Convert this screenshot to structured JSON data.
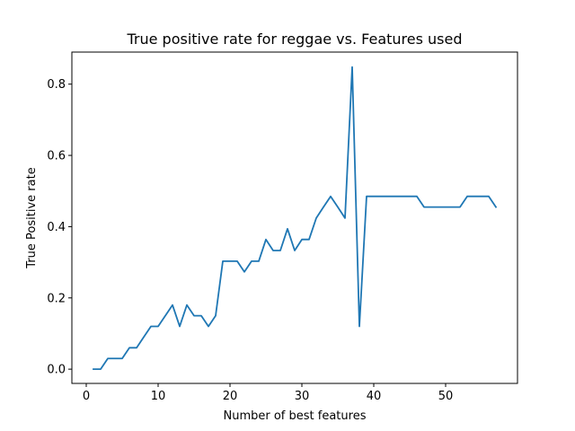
{
  "chart_data": {
    "type": "line",
    "title": "True positive rate for reggae vs. Features used",
    "xlabel": "Number of best features",
    "ylabel": "True Positive rate",
    "xlim": [
      -2,
      60
    ],
    "ylim": [
      -0.04,
      0.89
    ],
    "xticks": [
      0,
      10,
      20,
      30,
      40,
      50
    ],
    "xtick_labels": [
      "0",
      "10",
      "20",
      "30",
      "40",
      "50"
    ],
    "yticks": [
      0.0,
      0.2,
      0.4,
      0.6,
      0.8
    ],
    "ytick_labels": [
      "0.0",
      "0.2",
      "0.4",
      "0.6",
      "0.8"
    ],
    "grid": false,
    "series": [
      {
        "color": "#1f77b4",
        "x": [
          1,
          2,
          3,
          4,
          5,
          6,
          7,
          8,
          9,
          10,
          11,
          12,
          13,
          14,
          15,
          16,
          17,
          18,
          19,
          20,
          21,
          22,
          23,
          24,
          25,
          26,
          27,
          28,
          29,
          30,
          31,
          32,
          33,
          34,
          35,
          36,
          37,
          38,
          39,
          40,
          41,
          42,
          43,
          44,
          45,
          46,
          47,
          48,
          49,
          50,
          51,
          52,
          53,
          54,
          55,
          56,
          57
        ],
        "y": [
          0.0,
          0.0,
          0.03,
          0.03,
          0.03,
          0.06,
          0.06,
          0.09,
          0.12,
          0.12,
          0.15,
          0.18,
          0.12,
          0.18,
          0.15,
          0.15,
          0.12,
          0.15,
          0.303,
          0.303,
          0.303,
          0.273,
          0.303,
          0.303,
          0.364,
          0.333,
          0.333,
          0.394,
          0.333,
          0.364,
          0.364,
          0.424,
          0.455,
          0.485,
          0.455,
          0.424,
          0.848,
          0.12,
          0.485,
          0.485,
          0.485,
          0.485,
          0.485,
          0.485,
          0.485,
          0.485,
          0.455,
          0.455,
          0.455,
          0.455,
          0.455,
          0.455,
          0.485,
          0.485,
          0.485,
          0.485,
          0.455
        ]
      }
    ]
  }
}
